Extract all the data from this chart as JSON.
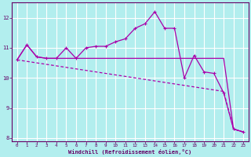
{
  "xlabel": "Windchill (Refroidissement éolien,°C)",
  "background_color": "#b2eeee",
  "grid_color": "#ffffff",
  "line_color": "#aa00aa",
  "border_color": "#660066",
  "text_color": "#660066",
  "x": [
    0,
    1,
    2,
    3,
    4,
    5,
    6,
    7,
    8,
    9,
    10,
    11,
    12,
    13,
    14,
    15,
    16,
    17,
    18,
    19,
    20,
    21,
    22,
    23
  ],
  "series1": [
    10.6,
    11.1,
    10.7,
    10.65,
    10.65,
    11.0,
    10.65,
    11.0,
    11.05,
    11.05,
    11.2,
    11.3,
    11.65,
    11.8,
    12.2,
    11.65,
    11.65,
    10.0,
    10.75,
    10.2,
    10.15,
    9.5,
    8.3,
    8.2
  ],
  "series2": [
    10.6,
    11.1,
    10.7,
    10.65,
    10.65,
    10.65,
    10.65,
    10.65,
    10.65,
    10.65,
    10.65,
    10.65,
    10.65,
    10.65,
    10.65,
    10.65,
    10.65,
    10.65,
    10.65,
    10.65,
    10.65,
    10.65,
    8.3,
    8.2
  ],
  "series3": [
    10.6,
    10.55,
    10.5,
    10.45,
    10.4,
    10.35,
    10.3,
    10.25,
    10.2,
    10.15,
    10.1,
    10.05,
    10.0,
    9.95,
    9.9,
    9.85,
    9.8,
    9.75,
    9.7,
    9.65,
    9.6,
    9.55,
    8.3,
    8.2
  ],
  "ylim": [
    7.9,
    12.5
  ],
  "yticks": [
    8,
    9,
    10,
    11,
    12
  ],
  "xticks": [
    0,
    1,
    2,
    3,
    4,
    5,
    6,
    7,
    8,
    9,
    10,
    11,
    12,
    13,
    14,
    15,
    16,
    17,
    18,
    19,
    20,
    21,
    22,
    23
  ]
}
